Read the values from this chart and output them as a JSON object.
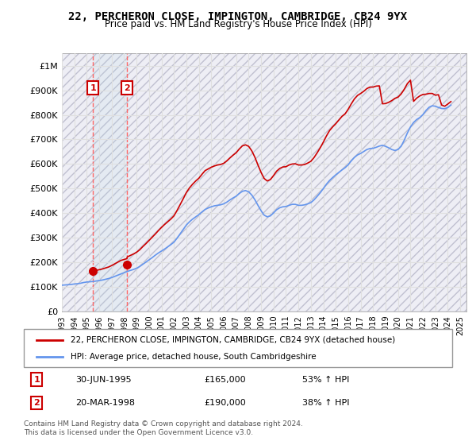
{
  "title": "22, PERCHERON CLOSE, IMPINGTON, CAMBRIDGE, CB24 9YX",
  "subtitle": "Price paid vs. HM Land Registry's House Price Index (HPI)",
  "ylabel_ticks": [
    "£0",
    "£100K",
    "£200K",
    "£300K",
    "£400K",
    "£500K",
    "£600K",
    "£700K",
    "£800K",
    "£900K",
    "£1M"
  ],
  "ytick_values": [
    0,
    100000,
    200000,
    300000,
    400000,
    500000,
    600000,
    700000,
    800000,
    900000,
    1000000
  ],
  "ylim": [
    0,
    1050000
  ],
  "xlim_start": 1993.0,
  "xlim_end": 2025.5,
  "xtick_years": [
    1993,
    1994,
    1995,
    1996,
    1997,
    1998,
    1999,
    2000,
    2001,
    2002,
    2003,
    2004,
    2005,
    2006,
    2007,
    2008,
    2009,
    2010,
    2011,
    2012,
    2013,
    2014,
    2015,
    2016,
    2017,
    2018,
    2019,
    2020,
    2021,
    2022,
    2023,
    2024,
    2025
  ],
  "purchase1_x": 1995.5,
  "purchase1_y": 165000,
  "purchase1_label": "1",
  "purchase1_date": "30-JUN-1995",
  "purchase1_price": "£165,000",
  "purchase1_hpi": "53% ↑ HPI",
  "purchase2_x": 1998.22,
  "purchase2_y": 190000,
  "purchase2_label": "2",
  "purchase2_date": "20-MAR-1998",
  "purchase2_price": "£190,000",
  "purchase2_hpi": "38% ↑ HPI",
  "hpi_line_color": "#6495ED",
  "price_line_color": "#CC0000",
  "vline_color": "#FF6666",
  "dot_color": "#CC0000",
  "box_color": "#CC0000",
  "grid_color": "#E0E0E0",
  "hatch_color": "#E8E8F0",
  "background_color": "#FFFFFF",
  "legend_line1": "22, PERCHERON CLOSE, IMPINGTON, CAMBRIDGE, CB24 9YX (detached house)",
  "legend_line2": "HPI: Average price, detached house, South Cambridgeshire",
  "footnote": "Contains HM Land Registry data © Crown copyright and database right 2024.\nThis data is licensed under the Open Government Licence v3.0.",
  "hpi_data_x": [
    1993.0,
    1993.25,
    1993.5,
    1993.75,
    1994.0,
    1994.25,
    1994.5,
    1994.75,
    1995.0,
    1995.25,
    1995.5,
    1995.75,
    1996.0,
    1996.25,
    1996.5,
    1996.75,
    1997.0,
    1997.25,
    1997.5,
    1997.75,
    1998.0,
    1998.25,
    1998.5,
    1998.75,
    1999.0,
    1999.25,
    1999.5,
    1999.75,
    2000.0,
    2000.25,
    2000.5,
    2000.75,
    2001.0,
    2001.25,
    2001.5,
    2001.75,
    2002.0,
    2002.25,
    2002.5,
    2002.75,
    2003.0,
    2003.25,
    2003.5,
    2003.75,
    2004.0,
    2004.25,
    2004.5,
    2004.75,
    2005.0,
    2005.25,
    2005.5,
    2005.75,
    2006.0,
    2006.25,
    2006.5,
    2006.75,
    2007.0,
    2007.25,
    2007.5,
    2007.75,
    2008.0,
    2008.25,
    2008.5,
    2008.75,
    2009.0,
    2009.25,
    2009.5,
    2009.75,
    2010.0,
    2010.25,
    2010.5,
    2010.75,
    2011.0,
    2011.25,
    2011.5,
    2011.75,
    2012.0,
    2012.25,
    2012.5,
    2012.75,
    2013.0,
    2013.25,
    2013.5,
    2013.75,
    2014.0,
    2014.25,
    2014.5,
    2014.75,
    2015.0,
    2015.25,
    2015.5,
    2015.75,
    2016.0,
    2016.25,
    2016.5,
    2016.75,
    2017.0,
    2017.25,
    2017.5,
    2017.75,
    2018.0,
    2018.25,
    2018.5,
    2018.75,
    2019.0,
    2019.25,
    2019.5,
    2019.75,
    2020.0,
    2020.25,
    2020.5,
    2020.75,
    2021.0,
    2021.25,
    2021.5,
    2021.75,
    2022.0,
    2022.25,
    2022.5,
    2022.75,
    2023.0,
    2023.25,
    2023.5,
    2023.75,
    2024.0,
    2024.25
  ],
  "hpi_data_y": [
    107000,
    108000,
    109000,
    110000,
    112000,
    113000,
    115000,
    118000,
    120000,
    121000,
    122000,
    124000,
    126000,
    128000,
    131000,
    134000,
    138000,
    143000,
    148000,
    153000,
    158000,
    163000,
    167000,
    171000,
    176000,
    183000,
    192000,
    201000,
    210000,
    219000,
    229000,
    238000,
    246000,
    254000,
    263000,
    272000,
    282000,
    298000,
    316000,
    334000,
    352000,
    365000,
    376000,
    385000,
    394000,
    405000,
    415000,
    421000,
    426000,
    430000,
    432000,
    434000,
    438000,
    445000,
    454000,
    462000,
    469000,
    480000,
    489000,
    492000,
    487000,
    474000,
    455000,
    432000,
    410000,
    392000,
    385000,
    389000,
    401000,
    414000,
    422000,
    426000,
    427000,
    432000,
    436000,
    436000,
    432000,
    432000,
    434000,
    438000,
    443000,
    454000,
    468000,
    483000,
    500000,
    518000,
    533000,
    545000,
    556000,
    566000,
    576000,
    585000,
    597000,
    613000,
    627000,
    637000,
    643000,
    651000,
    659000,
    663000,
    664000,
    668000,
    673000,
    676000,
    672000,
    666000,
    659000,
    655000,
    659000,
    672000,
    697000,
    726000,
    751000,
    769000,
    781000,
    789000,
    801000,
    818000,
    831000,
    837000,
    835000,
    830000,
    826000,
    825000,
    830000,
    840000
  ],
  "price_data_x": [
    1995.5,
    1995.75,
    1996.0,
    1996.25,
    1996.5,
    1996.75,
    1997.0,
    1997.25,
    1997.5,
    1997.75,
    1998.22,
    1998.25,
    1998.5,
    1998.75,
    1999.0,
    1999.25,
    1999.5,
    1999.75,
    2000.0,
    2000.25,
    2000.5,
    2000.75,
    2001.0,
    2001.25,
    2001.5,
    2001.75,
    2002.0,
    2002.25,
    2002.5,
    2002.75,
    2003.0,
    2003.25,
    2003.5,
    2003.75,
    2004.0,
    2004.25,
    2004.5,
    2004.75,
    2005.0,
    2005.25,
    2005.5,
    2005.75,
    2006.0,
    2006.25,
    2006.5,
    2006.75,
    2007.0,
    2007.25,
    2007.5,
    2007.75,
    2008.0,
    2008.25,
    2008.5,
    2008.75,
    2009.0,
    2009.25,
    2009.5,
    2009.75,
    2010.0,
    2010.25,
    2010.5,
    2010.75,
    2011.0,
    2011.25,
    2011.5,
    2011.75,
    2012.0,
    2012.25,
    2012.5,
    2012.75,
    2013.0,
    2013.25,
    2013.5,
    2013.75,
    2014.0,
    2014.25,
    2014.5,
    2014.75,
    2015.0,
    2015.25,
    2015.5,
    2015.75,
    2016.0,
    2016.25,
    2016.5,
    2016.75,
    2017.0,
    2017.25,
    2017.5,
    2017.75,
    2018.0,
    2018.25,
    2018.5,
    2018.75,
    2019.0,
    2019.25,
    2019.5,
    2019.75,
    2020.0,
    2020.25,
    2020.5,
    2020.75,
    2021.0,
    2021.25,
    2021.5,
    2021.75,
    2022.0,
    2022.25,
    2022.5,
    2022.75,
    2023.0,
    2023.25,
    2023.5,
    2023.75,
    2024.0,
    2024.25
  ],
  "price_data_y": [
    165000,
    167000,
    170000,
    173000,
    177000,
    181000,
    187000,
    194000,
    201000,
    208000,
    215000,
    222000,
    228000,
    234000,
    241000,
    251000,
    264000,
    276000,
    289000,
    302000,
    315000,
    329000,
    342000,
    354000,
    365000,
    376000,
    389000,
    411000,
    435000,
    459000,
    484000,
    503000,
    518000,
    531000,
    542000,
    558000,
    573000,
    580000,
    587000,
    592000,
    596000,
    598000,
    603000,
    613000,
    625000,
    636000,
    646000,
    661000,
    674000,
    678000,
    672000,
    654000,
    628000,
    596000,
    566000,
    541000,
    531000,
    537000,
    553000,
    571000,
    582000,
    588000,
    589000,
    596000,
    600000,
    601000,
    596000,
    596000,
    598000,
    604000,
    611000,
    626000,
    645000,
    666000,
    689000,
    714000,
    736000,
    751000,
    764000,
    779000,
    794000,
    804000,
    823000,
    845000,
    865000,
    879000,
    887000,
    896000,
    907000,
    913000,
    913000,
    917000,
    918000,
    845000,
    846000,
    851000,
    858000,
    867000,
    872000,
    885000,
    904000,
    927000,
    941000,
    855000,
    868000,
    877000,
    883000,
    884000,
    887000,
    887000,
    880000,
    882000,
    840000,
    835000,
    844000,
    854000
  ]
}
